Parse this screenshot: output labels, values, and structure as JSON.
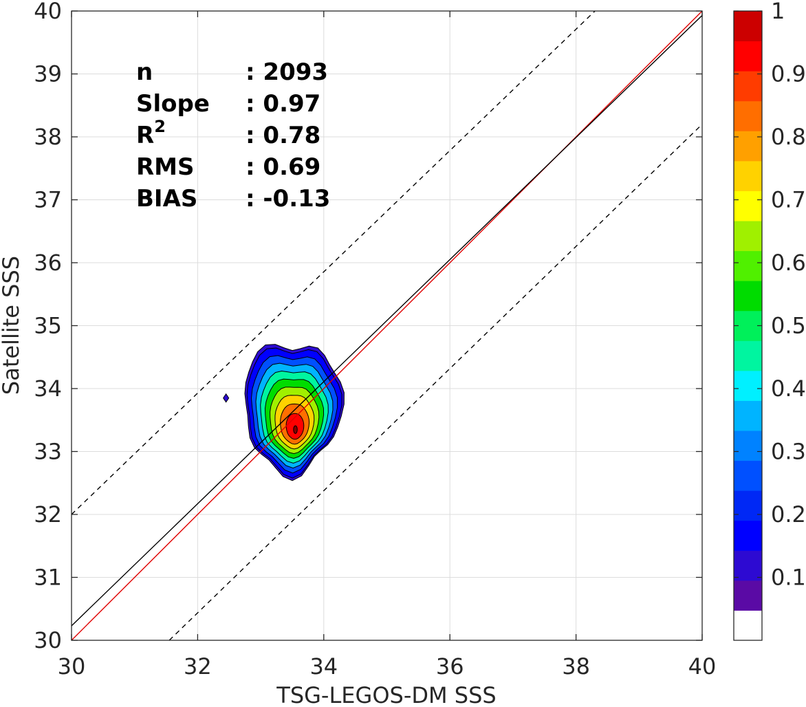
{
  "chart_data": {
    "type": "contour",
    "xlabel": "TSG-LEGOS-DM SSS",
    "ylabel": "Satellite SSS",
    "xlim": [
      30,
      40
    ],
    "ylim": [
      30,
      40
    ],
    "x_ticks": [
      30,
      32,
      34,
      36,
      38,
      40
    ],
    "y_ticks": [
      30,
      31,
      32,
      33,
      34,
      35,
      36,
      37,
      38,
      39,
      40
    ],
    "grid": true,
    "stats": [
      {
        "name": "n",
        "value": ": 2093"
      },
      {
        "name": "Slope",
        "value": ": 0.97"
      },
      {
        "name": "R",
        "sup": "2",
        "value": ": 0.78"
      },
      {
        "name": "RMS",
        "value": ": 0.69"
      },
      {
        "name": "BIAS",
        "value": ": -0.13"
      }
    ],
    "lines": [
      {
        "name": "one-to-one",
        "color": "#e00000",
        "dash": false,
        "points": [
          [
            30,
            30
          ],
          [
            40,
            40
          ]
        ]
      },
      {
        "name": "regression",
        "color": "#000000",
        "dash": false,
        "points": [
          [
            30,
            30.23
          ],
          [
            40,
            39.93
          ]
        ]
      },
      {
        "name": "upper-bound",
        "color": "#000000",
        "dash": true,
        "points": [
          [
            30,
            32
          ],
          [
            38.3,
            40
          ]
        ]
      },
      {
        "name": "lower-bound",
        "color": "#000000",
        "dash": true,
        "points": [
          [
            31.55,
            30
          ],
          [
            40,
            38.2
          ]
        ]
      }
    ],
    "density_contours": {
      "center": [
        33.55,
        33.35
      ],
      "levels": [
        0.05,
        0.1,
        0.2,
        0.3,
        0.4,
        0.5,
        0.6,
        0.7,
        0.8,
        0.9,
        1.0
      ]
    },
    "outlier_blob": [
      32.45,
      33.85
    ],
    "colorbar": {
      "ticks": [
        0.1,
        0.2,
        0.3,
        0.4,
        0.5,
        0.6,
        0.7,
        0.8,
        0.9,
        1
      ],
      "range": [
        0,
        1
      ],
      "colors": [
        "#ffffff",
        "#5a0aa5",
        "#2d0ad2",
        "#0000ff",
        "#0028f5",
        "#0050ff",
        "#0082ff",
        "#00b4ff",
        "#00f0ff",
        "#00f5a0",
        "#00f05a",
        "#00dc00",
        "#50f000",
        "#a0f000",
        "#ffff00",
        "#ffd200",
        "#ffa000",
        "#ff6e00",
        "#ff3c00",
        "#ff0000",
        "#cc0000",
        "#800000"
      ]
    }
  }
}
